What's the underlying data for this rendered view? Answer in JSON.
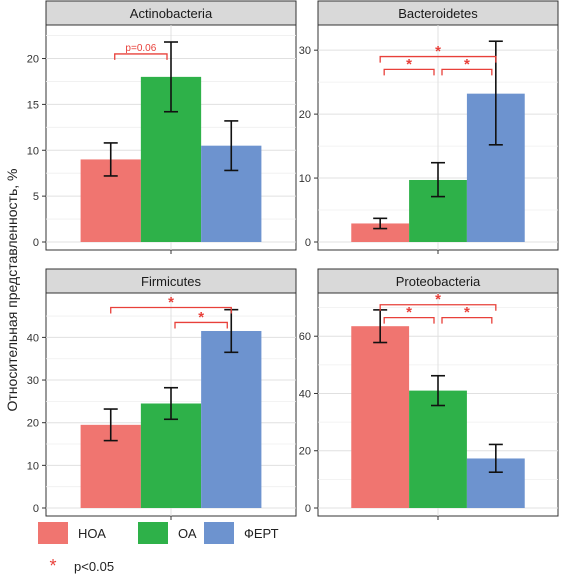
{
  "figure": {
    "ylabel": "Относительная представленность, %"
  },
  "legend": {
    "items": [
      {
        "label": "НОА",
        "color": "#f07570"
      },
      {
        "label": "ОА",
        "color": "#2eb149"
      },
      {
        "label": "ФЕРТ",
        "color": "#6d93cf"
      }
    ],
    "significance": {
      "symbol": "*",
      "label": "p<0.05",
      "color": "#e8403a"
    }
  },
  "chart_data": [
    {
      "type": "bar",
      "title": "Actinobacteria",
      "categories": [
        "НОА",
        "ОА",
        "ФЕРТ"
      ],
      "values": [
        9.0,
        18.0,
        10.5
      ],
      "error_low": [
        7.2,
        14.2,
        7.8
      ],
      "error_high": [
        10.8,
        21.8,
        13.2
      ],
      "ylim": [
        0,
        23
      ],
      "yticks": [
        0,
        5,
        10,
        15,
        20
      ],
      "brackets": [
        {
          "from": 0,
          "to": 1,
          "y": 20.5,
          "label": "p=0.06"
        }
      ]
    },
    {
      "type": "bar",
      "title": "Bacteroidetes",
      "categories": [
        "НОА",
        "ОА",
        "ФЕРТ"
      ],
      "values": [
        2.9,
        9.7,
        23.2
      ],
      "error_low": [
        2.1,
        7.1,
        15.2
      ],
      "error_high": [
        3.7,
        12.4,
        31.4
      ],
      "ylim": [
        0,
        33
      ],
      "yticks": [
        0,
        10,
        20,
        30
      ],
      "brackets": [
        {
          "from": 0,
          "to": 2,
          "y": 29.0,
          "label": "*"
        },
        {
          "from": 0,
          "to": 1,
          "y": 27.0,
          "label": "*"
        },
        {
          "from": 1,
          "to": 2,
          "y": 27.0,
          "label": "*"
        }
      ]
    },
    {
      "type": "bar",
      "title": "Firmicutes",
      "categories": [
        "НОА",
        "ОА",
        "ФЕРТ"
      ],
      "values": [
        19.5,
        24.5,
        41.5
      ],
      "error_low": [
        15.8,
        20.8,
        36.5
      ],
      "error_high": [
        23.2,
        28.2,
        46.5
      ],
      "ylim": [
        0,
        49
      ],
      "yticks": [
        0,
        10,
        20,
        30,
        40
      ],
      "brackets": [
        {
          "from": 0,
          "to": 2,
          "y": 47.0,
          "label": "*"
        },
        {
          "from": 1,
          "to": 2,
          "y": 43.5,
          "label": "*"
        }
      ]
    },
    {
      "type": "bar",
      "title": "Proteobacteria",
      "categories": [
        "НОА",
        "ОА",
        "ФЕРТ"
      ],
      "values": [
        63.5,
        41.0,
        17.3
      ],
      "error_low": [
        57.8,
        35.8,
        12.5
      ],
      "error_high": [
        69.2,
        46.2,
        22.2
      ],
      "ylim": [
        0,
        73
      ],
      "yticks": [
        0,
        20,
        40,
        60
      ],
      "brackets": [
        {
          "from": 0,
          "to": 2,
          "y": 71.0,
          "label": "*"
        },
        {
          "from": 0,
          "to": 1,
          "y": 66.5,
          "label": "*"
        },
        {
          "from": 1,
          "to": 2,
          "y": 66.5,
          "label": "*"
        }
      ]
    }
  ]
}
